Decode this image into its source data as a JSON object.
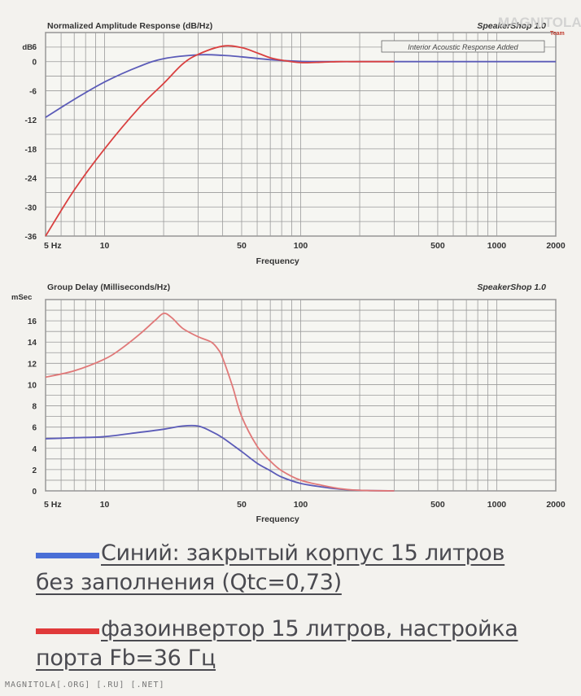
{
  "chart_data": [
    {
      "type": "line",
      "title": "Normalized Amplitude Response (dB/Hz)",
      "software": "SpeakerShop 1.0",
      "note": "Interior Acoustic Response Added",
      "xlabel": "Frequency",
      "ylabel": "dB",
      "x_scale": "log",
      "xlim": [
        5,
        2000
      ],
      "ylim": [
        -36,
        6
      ],
      "x_ticks": [
        {
          "value": 5,
          "label": "5 Hz"
        },
        {
          "value": 10,
          "label": "10"
        },
        {
          "value": 50,
          "label": "50"
        },
        {
          "value": 100,
          "label": "100"
        },
        {
          "value": 500,
          "label": "500"
        },
        {
          "value": 1000,
          "label": "1000"
        },
        {
          "value": 2000,
          "label": "2000"
        }
      ],
      "y_ticks": [
        6,
        0,
        -6,
        -12,
        -18,
        -24,
        -30,
        -36
      ],
      "y_tick_labels": [
        "6",
        "0",
        "-6",
        "-12",
        "-18",
        "-24",
        "-30",
        "-36"
      ],
      "series": [
        {
          "color": "#5b5bb8",
          "x": [
            5,
            7,
            10,
            15,
            20,
            30,
            40,
            50,
            70,
            100,
            150,
            200,
            300,
            500,
            1000,
            2000
          ],
          "y": [
            -11.5,
            -7.8,
            -4.2,
            -1.0,
            0.6,
            1.4,
            1.3,
            1.0,
            0.4,
            0.05,
            0,
            0,
            0,
            0,
            0,
            0
          ]
        },
        {
          "color": "#d94040",
          "x": [
            5,
            7,
            10,
            15,
            20,
            25,
            30,
            40,
            50,
            60,
            70,
            80,
            100,
            130,
            160,
            200,
            300
          ],
          "y": [
            -36,
            -26.5,
            -18,
            -9.5,
            -4.5,
            -0.5,
            1.5,
            3.2,
            2.9,
            1.8,
            0.8,
            0.3,
            -0.2,
            -0.1,
            0,
            0,
            0
          ]
        }
      ]
    },
    {
      "type": "line",
      "title": "Group Delay (Milliseconds/Hz)",
      "software": "SpeakerShop 1.0",
      "xlabel": "Frequency",
      "ylabel": "mSec",
      "x_scale": "log",
      "xlim": [
        5,
        2000
      ],
      "ylim": [
        0,
        18
      ],
      "x_ticks": [
        {
          "value": 5,
          "label": "5 Hz"
        },
        {
          "value": 10,
          "label": "10"
        },
        {
          "value": 50,
          "label": "50"
        },
        {
          "value": 100,
          "label": "100"
        },
        {
          "value": 500,
          "label": "500"
        },
        {
          "value": 1000,
          "label": "1000"
        },
        {
          "value": 2000,
          "label": "2000"
        }
      ],
      "y_ticks": [
        16,
        14,
        12,
        10,
        8,
        6,
        4,
        2,
        0
      ],
      "y_tick_labels": [
        "16",
        "14",
        "12",
        "10",
        "8",
        "6",
        "4",
        "2",
        "0"
      ],
      "series": [
        {
          "color": "#5b5bb8",
          "x": [
            5,
            7,
            10,
            15,
            20,
            25,
            30,
            35,
            40,
            50,
            60,
            70,
            80,
            100,
            130,
            160,
            200,
            300
          ],
          "y": [
            4.9,
            5.0,
            5.1,
            5.5,
            5.8,
            6.1,
            6.1,
            5.6,
            5.0,
            3.7,
            2.6,
            1.9,
            1.3,
            0.7,
            0.35,
            0.15,
            0.05,
            0
          ]
        },
        {
          "color": "#e07878",
          "x": [
            5,
            7,
            10,
            12,
            15,
            18,
            20,
            22,
            25,
            30,
            35,
            38,
            40,
            45,
            50,
            60,
            70,
            80,
            100,
            130,
            160,
            200,
            300
          ],
          "y": [
            10.7,
            11.3,
            12.4,
            13.3,
            14.7,
            16.0,
            16.7,
            16.3,
            15.3,
            14.5,
            14.0,
            13.3,
            12.5,
            9.8,
            7.0,
            4.2,
            2.8,
            1.9,
            1.0,
            0.5,
            0.2,
            0.05,
            0
          ]
        }
      ]
    }
  ],
  "legend": [
    {
      "color": "#4a6fd6",
      "text_line1": "Синий: закрытый корпус 15 литров",
      "text_line2": "без заполнения (Qtc=0,73)"
    },
    {
      "color": "#e03a3a",
      "text_line1": "фазоинвертор 15 литров, настройка",
      "text_line2": "порта Fb=36 Гц"
    }
  ],
  "watermark": "MAGNITOLA",
  "watermark_sub": "Team",
  "footer": "MAGNITOLA[.ORG] [.RU] [.NET]"
}
